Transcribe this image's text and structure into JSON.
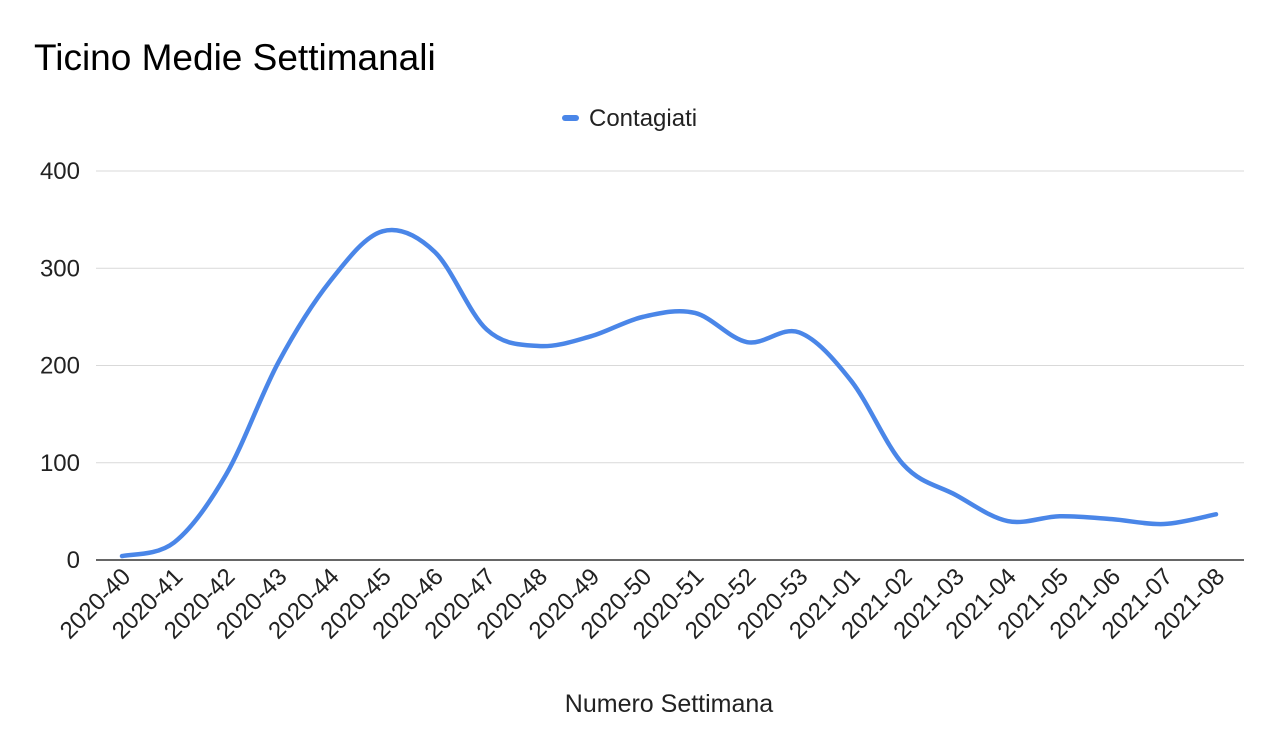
{
  "chart_data": {
    "type": "line",
    "title": "Ticino Medie Settimanali",
    "xlabel": "Numero Settimana",
    "ylabel": "",
    "ylim": [
      0,
      400
    ],
    "yticks": [
      "0",
      "100",
      "200",
      "300",
      "400"
    ],
    "grid": true,
    "legend_position": "top",
    "categories": [
      "2020-40",
      "2020-41",
      "2020-42",
      "2020-43",
      "2020-44",
      "2020-45",
      "2020-46",
      "2020-47",
      "2020-48",
      "2020-49",
      "2020-50",
      "2020-51",
      "2020-52",
      "2020-53",
      "2021-01",
      "2021-02",
      "2021-03",
      "2021-04",
      "2021-05",
      "2021-06",
      "2021-07",
      "2021-08"
    ],
    "series": [
      {
        "name": "Contagiati",
        "color": "#4a86e8",
        "values": [
          4,
          18,
          88,
          203,
          287,
          338,
          317,
          237,
          220,
          230,
          250,
          254,
          224,
          234,
          184,
          98,
          67,
          40,
          45,
          42,
          37,
          47
        ]
      }
    ]
  }
}
